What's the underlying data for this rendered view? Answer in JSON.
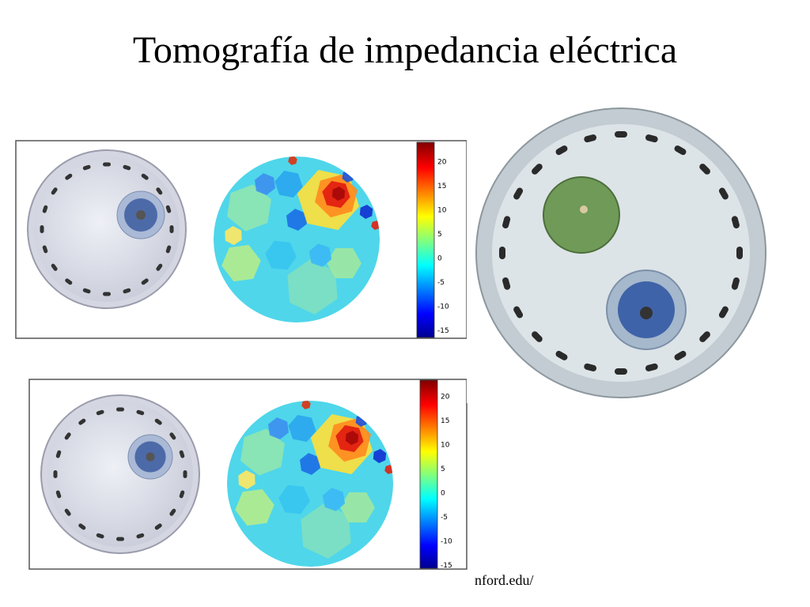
{
  "title": "Tomografía de impedancia eléctrica",
  "panels": [
    {
      "colorbar_ticks": [
        20,
        15,
        10,
        5,
        0,
        -5,
        -10,
        -15
      ]
    },
    {
      "colorbar_ticks": [
        20,
        15,
        10,
        5,
        0,
        -5,
        -10,
        -15
      ]
    }
  ],
  "source": "nford.edu/"
}
